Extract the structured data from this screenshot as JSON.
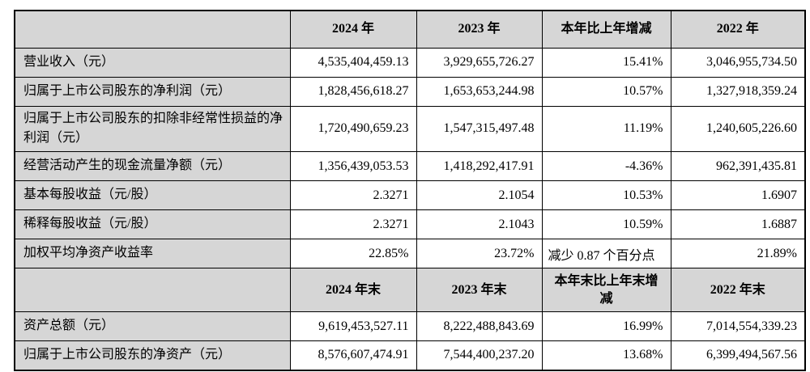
{
  "colors": {
    "header_and_label_bg": "#d6d6d6",
    "cell_bg": "#ffffff",
    "border": "#000000",
    "text": "#000000"
  },
  "table": {
    "header1": {
      "blank": "",
      "y2024": "2024 年",
      "y2023": "2023 年",
      "change": "本年比上年增减",
      "y2022": "2022 年"
    },
    "section1_rows": [
      {
        "label": "营业收入（元）",
        "y2024": "4,535,404,459.13",
        "y2023": "3,929,655,726.27",
        "change": "15.41%",
        "y2022": "3,046,955,734.50"
      },
      {
        "label": "归属于上市公司股东的净利润（元）",
        "y2024": "1,828,456,618.27",
        "y2023": "1,653,653,244.98",
        "change": "10.57%",
        "y2022": "1,327,918,359.24"
      },
      {
        "label": "归属于上市公司股东的扣除非经常性损益的净利润（元）",
        "y2024": "1,720,490,659.23",
        "y2023": "1,547,315,497.48",
        "change": "11.19%",
        "y2022": "1,240,605,226.60"
      },
      {
        "label": "经营活动产生的现金流量净额（元）",
        "y2024": "1,356,439,053.53",
        "y2023": "1,418,292,417.91",
        "change": "-4.36%",
        "y2022": "962,391,435.81"
      },
      {
        "label": "基本每股收益（元/股）",
        "y2024": "2.3271",
        "y2023": "2.1054",
        "change": "10.53%",
        "y2022": "1.6907"
      },
      {
        "label": "稀释每股收益（元/股）",
        "y2024": "2.3271",
        "y2023": "2.1043",
        "change": "10.59%",
        "y2022": "1.6887"
      },
      {
        "label": "加权平均净资产收益率",
        "y2024": "22.85%",
        "y2023": "23.72%",
        "change": "减少 0.87 个百分点",
        "y2022": "21.89%"
      }
    ],
    "header2": {
      "blank": "",
      "y2024": "2024 年末",
      "y2023": "2023 年末",
      "change": "本年末比上年末增减",
      "y2022": "2022 年末"
    },
    "section2_rows": [
      {
        "label": "资产总额（元）",
        "y2024": "9,619,453,527.11",
        "y2023": "8,222,488,843.69",
        "change": "16.99%",
        "y2022": "7,014,554,339.23"
      },
      {
        "label": "归属于上市公司股东的净资产（元）",
        "y2024": "8,576,607,474.91",
        "y2023": "7,544,400,237.20",
        "change": "13.68%",
        "y2022": "6,399,494,567.56"
      }
    ]
  }
}
